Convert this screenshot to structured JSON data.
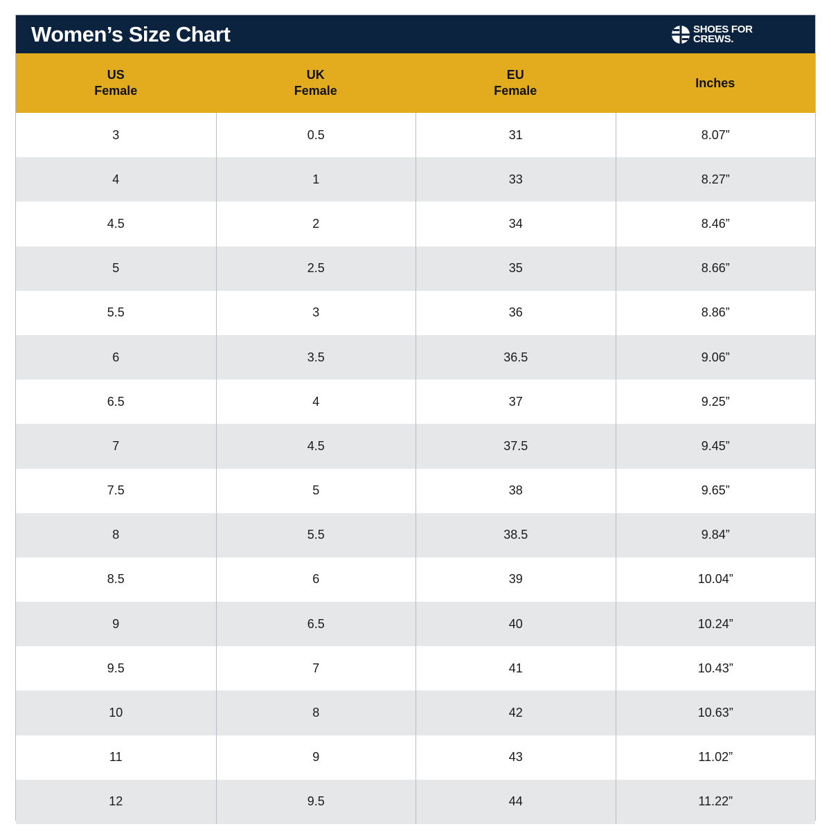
{
  "title": "Women’s Size Chart",
  "brand": {
    "line1": "SHOES FOR",
    "line2": "CREWS."
  },
  "colors": {
    "header_bg": "#0c2340",
    "column_header_bg": "#e3ac1e",
    "alt_row_bg": "#e6e7e9"
  },
  "columns": [
    {
      "line1": "US",
      "line2": "Female"
    },
    {
      "line1": "UK",
      "line2": "Female"
    },
    {
      "line1": "EU",
      "line2": "Female"
    },
    {
      "line1": "Inches",
      "line2": ""
    }
  ],
  "rows": [
    [
      "3",
      "0.5",
      "31",
      "8.07”"
    ],
    [
      "4",
      "1",
      "33",
      "8.27”"
    ],
    [
      "4.5",
      "2",
      "34",
      "8.46”"
    ],
    [
      "5",
      "2.5",
      "35",
      "8.66”"
    ],
    [
      "5.5",
      "3",
      "36",
      "8.86”"
    ],
    [
      "6",
      "3.5",
      "36.5",
      "9.06”"
    ],
    [
      "6.5",
      "4",
      "37",
      "9.25”"
    ],
    [
      "7",
      "4.5",
      "37.5",
      "9.45”"
    ],
    [
      "7.5",
      "5",
      "38",
      "9.65”"
    ],
    [
      "8",
      "5.5",
      "38.5",
      "9.84”"
    ],
    [
      "8.5",
      "6",
      "39",
      "10.04”"
    ],
    [
      "9",
      "6.5",
      "40",
      "10.24”"
    ],
    [
      "9.5",
      "7",
      "41",
      "10.43”"
    ],
    [
      "10",
      "8",
      "42",
      "10.63”"
    ],
    [
      "11",
      "9",
      "43",
      "11.02”"
    ],
    [
      "12",
      "9.5",
      "44",
      "11.22”"
    ]
  ]
}
